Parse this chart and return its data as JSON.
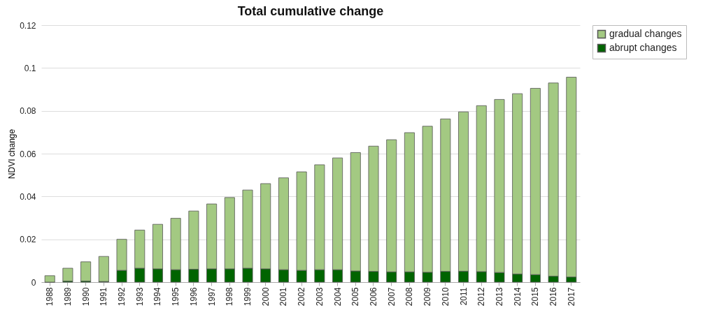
{
  "chart_data": {
    "type": "bar",
    "title": "Total cumulative change",
    "ylabel": "NDVI change",
    "stacked": true,
    "categories": [
      "1988",
      "1989",
      "1990",
      "1991",
      "1992",
      "1993",
      "1994",
      "1995",
      "1996",
      "1997",
      "1998",
      "1999",
      "2000",
      "2001",
      "2002",
      "2003",
      "2004",
      "2005",
      "2006",
      "2007",
      "2008",
      "2009",
      "2010",
      "2011",
      "2012",
      "2013",
      "2014",
      "2015",
      "2016",
      "2017"
    ],
    "series": [
      {
        "name": "abrupt changes",
        "color": "#006400",
        "values": [
          0,
          0.0005,
          0.0005,
          0.0003,
          0.0055,
          0.0065,
          0.0062,
          0.0058,
          0.006,
          0.0062,
          0.0062,
          0.0065,
          0.0062,
          0.0058,
          0.0055,
          0.0058,
          0.0058,
          0.0052,
          0.005,
          0.0048,
          0.0048,
          0.0046,
          0.005,
          0.0051,
          0.0049,
          0.0045,
          0.0038,
          0.0035,
          0.0028,
          0.0024
        ]
      },
      {
        "name": "gradual changes",
        "color": "#a3c982",
        "values": [
          0.003,
          0.006,
          0.009,
          0.0117,
          0.0145,
          0.0178,
          0.0208,
          0.024,
          0.0272,
          0.0303,
          0.0333,
          0.0365,
          0.0398,
          0.0429,
          0.046,
          0.049,
          0.0522,
          0.0553,
          0.0585,
          0.0617,
          0.065,
          0.0682,
          0.0712,
          0.0744,
          0.0775,
          0.0808,
          0.0842,
          0.087,
          0.0902,
          0.0933
        ]
      }
    ],
    "ylim": [
      0,
      0.12
    ],
    "yticks": [
      0,
      0.02,
      0.04,
      0.06,
      0.08,
      0.1,
      0.12
    ],
    "grid": "y",
    "legend": "right"
  }
}
